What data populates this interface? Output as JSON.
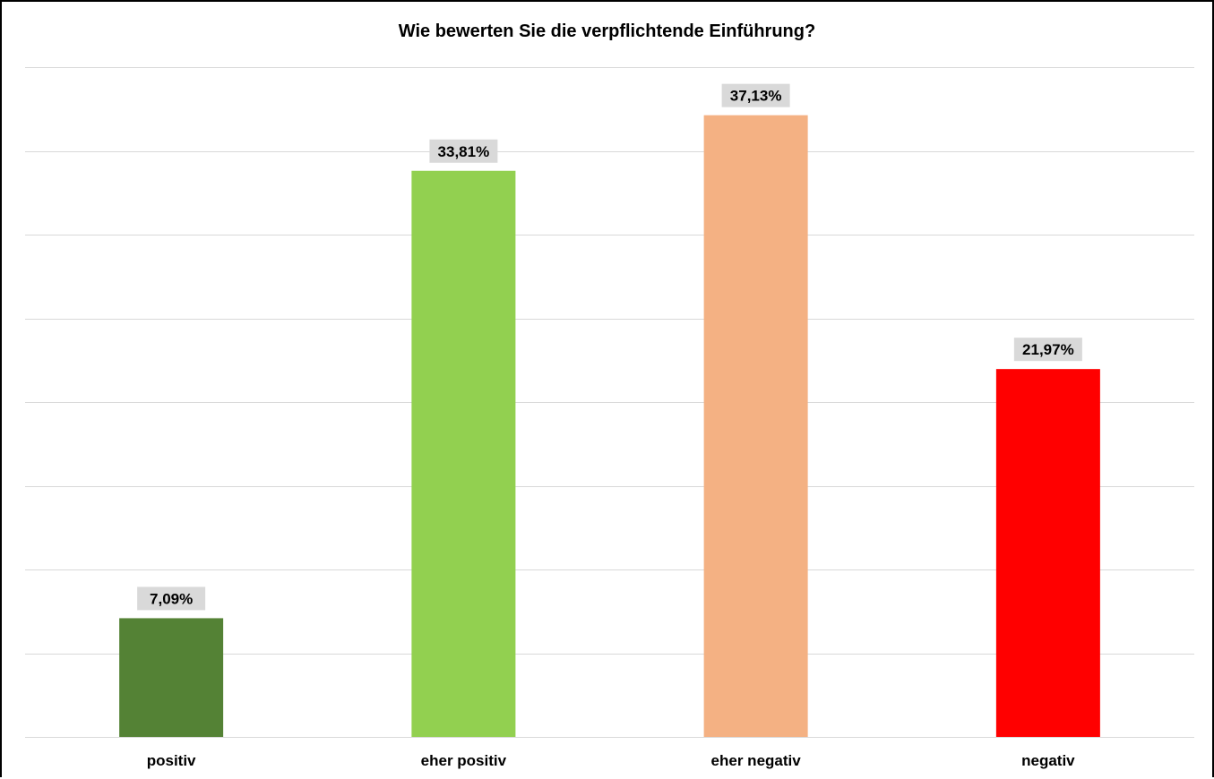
{
  "chart_data": {
    "type": "bar",
    "title": "Wie bewerten Sie die verpflichtende Einführung?",
    "categories": [
      "positiv",
      "eher positiv",
      "eher negativ",
      "negativ"
    ],
    "values": [
      7.09,
      33.81,
      37.13,
      21.97
    ],
    "data_labels": [
      "7,09%",
      "33,81%",
      "37,13%",
      "21,97%"
    ],
    "colors": [
      "#548235",
      "#92D050",
      "#F4B183",
      "#FF0000"
    ],
    "ylim": [
      0,
      40
    ],
    "grid": true,
    "legend": "none",
    "xlabel": "",
    "ylabel": ""
  }
}
